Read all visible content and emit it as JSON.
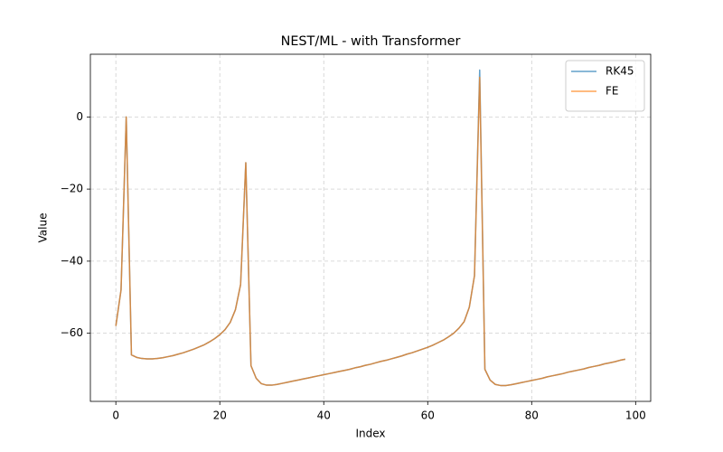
{
  "chart_data": {
    "type": "line",
    "title": "NEST/ML - with Transformer",
    "xlabel": "Index",
    "ylabel": "Value",
    "x": [
      0,
      1,
      2,
      3,
      4,
      5,
      6,
      7,
      8,
      9,
      10,
      11,
      12,
      13,
      14,
      15,
      16,
      17,
      18,
      19,
      20,
      21,
      22,
      23,
      24,
      25,
      26,
      27,
      28,
      29,
      30,
      31,
      32,
      33,
      34,
      35,
      36,
      37,
      38,
      39,
      40,
      41,
      42,
      43,
      44,
      45,
      46,
      47,
      48,
      49,
      50,
      51,
      52,
      53,
      54,
      55,
      56,
      57,
      58,
      59,
      60,
      61,
      62,
      63,
      64,
      65,
      66,
      67,
      68,
      69,
      70,
      71,
      72,
      73,
      74,
      75,
      76,
      77,
      78,
      79,
      80,
      81,
      82,
      83,
      84,
      85,
      86,
      87,
      88,
      89,
      90,
      91,
      92,
      93,
      94,
      95,
      96,
      97,
      98
    ],
    "series": [
      {
        "name": "RK45",
        "color": "#1f77b4",
        "values": [
          -58,
          -48,
          0,
          -66,
          -66.7,
          -67,
          -67.1,
          -67.1,
          -67,
          -66.8,
          -66.5,
          -66.2,
          -65.8,
          -65.4,
          -64.9,
          -64.4,
          -63.8,
          -63.2,
          -62.4,
          -61.5,
          -60.4,
          -59,
          -57,
          -53.5,
          -46.5,
          -12.7,
          -69,
          -72.5,
          -74,
          -74.4,
          -74.4,
          -74.2,
          -73.9,
          -73.6,
          -73.3,
          -73.0,
          -72.7,
          -72.4,
          -72.1,
          -71.8,
          -71.5,
          -71.2,
          -70.9,
          -70.6,
          -70.3,
          -70.0,
          -69.6,
          -69.3,
          -68.9,
          -68.6,
          -68.2,
          -67.8,
          -67.5,
          -67.1,
          -66.7,
          -66.3,
          -65.8,
          -65.4,
          -64.9,
          -64.4,
          -63.9,
          -63.3,
          -62.6,
          -61.9,
          -61.0,
          -60.0,
          -58.6,
          -56.8,
          -52.8,
          -44.0,
          13,
          -70,
          -73,
          -74.2,
          -74.5,
          -74.5,
          -74.3,
          -74.0,
          -73.7,
          -73.4,
          -73.1,
          -72.8,
          -72.5,
          -72.1,
          -71.8,
          -71.5,
          -71.2,
          -70.8,
          -70.5,
          -70.2,
          -69.9,
          -69.5,
          -69.2,
          -68.9,
          -68.5,
          -68.2,
          -67.9,
          -67.5,
          -67.2
        ]
      },
      {
        "name": "FE",
        "color": "#ff7f0e",
        "values": [
          -58,
          -48,
          0,
          -66,
          -66.7,
          -67,
          -67.1,
          -67.1,
          -67,
          -66.8,
          -66.5,
          -66.2,
          -65.8,
          -65.4,
          -64.9,
          -64.4,
          -63.8,
          -63.2,
          -62.4,
          -61.5,
          -60.4,
          -59,
          -57,
          -53.5,
          -46.5,
          -12.7,
          -69,
          -72.5,
          -74,
          -74.4,
          -74.4,
          -74.2,
          -73.9,
          -73.6,
          -73.3,
          -73.0,
          -72.7,
          -72.4,
          -72.1,
          -71.8,
          -71.5,
          -71.2,
          -70.9,
          -70.6,
          -70.3,
          -70.0,
          -69.6,
          -69.3,
          -68.9,
          -68.6,
          -68.2,
          -67.8,
          -67.5,
          -67.1,
          -66.7,
          -66.3,
          -65.8,
          -65.4,
          -64.9,
          -64.4,
          -63.9,
          -63.3,
          -62.6,
          -61.9,
          -61.0,
          -60.0,
          -58.6,
          -56.8,
          -52.8,
          -44.0,
          11,
          -70,
          -73,
          -74.2,
          -74.5,
          -74.5,
          -74.3,
          -74.0,
          -73.7,
          -73.4,
          -73.1,
          -72.8,
          -72.5,
          -72.1,
          -71.8,
          -71.5,
          -71.2,
          -70.8,
          -70.5,
          -70.2,
          -69.9,
          -69.5,
          -69.2,
          -68.9,
          -68.5,
          -68.2,
          -67.9,
          -67.5,
          -67.2
        ]
      }
    ],
    "xlim": [
      -4.9,
      102.9
    ],
    "ylim": [
      -78.9,
      17.4
    ],
    "xticks": [
      0,
      20,
      40,
      60,
      80,
      100
    ],
    "yticks": [
      {
        "value": -60,
        "label": "−60"
      },
      {
        "value": -40,
        "label": "−40"
      },
      {
        "value": -20,
        "label": "−20"
      },
      0
    ],
    "grid": true,
    "legend": "upper right"
  }
}
